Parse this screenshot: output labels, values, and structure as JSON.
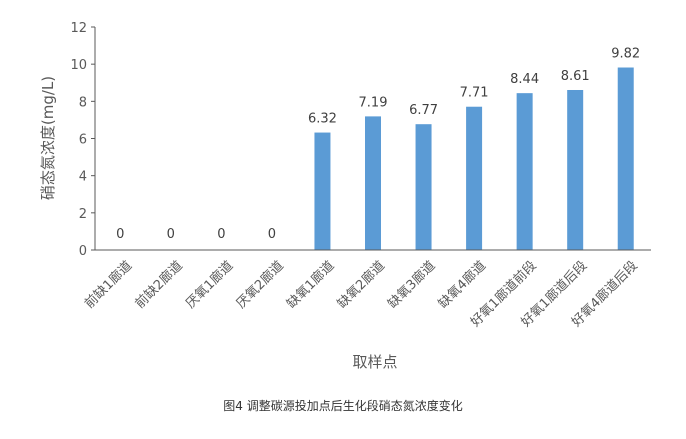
{
  "caption": "图4 调整碳源投加点后生化段硝态氮浓度变化",
  "chart_data": {
    "type": "bar",
    "title": "",
    "xlabel": "取样点",
    "ylabel": "硝态氮浓度(mg/L)",
    "ylim": [
      0,
      12
    ],
    "yticks": [
      0,
      2,
      4,
      6,
      8,
      10,
      12
    ],
    "grid": false,
    "legend": "none",
    "bar_color": "#5B9BD5",
    "categories": [
      "前缺1廊道",
      "前缺2廊道",
      "厌氧1廊道",
      "厌氧2廊道",
      "缺氧1廊道",
      "缺氧2廊道",
      "缺氧3廊道",
      "缺氧4廊道",
      "好氧1廊道前段",
      "好氧1廊道后段",
      "好氧4廊道后段"
    ],
    "values": [
      0,
      0,
      0,
      0,
      6.32,
      7.19,
      6.77,
      7.71,
      8.44,
      8.61,
      9.82
    ],
    "data_labels": [
      "0",
      "0",
      "0",
      "0",
      "6.32",
      "7.19",
      "6.77",
      "7.71",
      "8.44",
      "8.61",
      "9.82"
    ]
  }
}
